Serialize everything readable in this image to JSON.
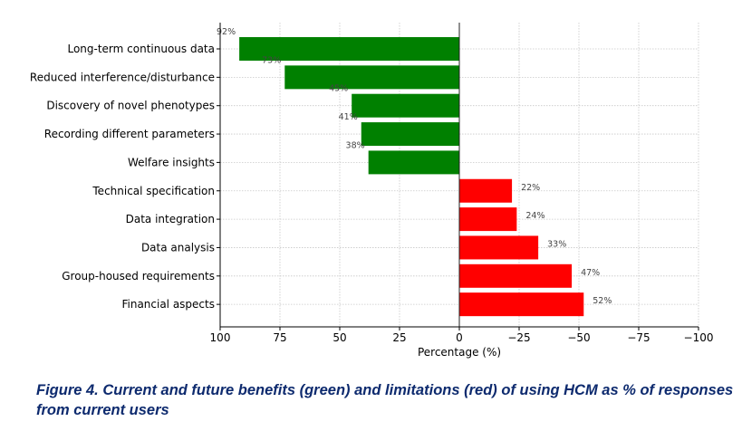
{
  "chart_data": {
    "type": "bar",
    "orientation": "horizontal",
    "categories": [
      "Long-term continuous data",
      "Reduced interference/disturbance",
      "Discovery of novel phenotypes",
      "Recording different parameters",
      "Welfare insights",
      "Technical specification",
      "Data integration",
      "Data analysis",
      "Group-housed requirements",
      "Financial aspects"
    ],
    "values": [
      92,
      73,
      45,
      41,
      38,
      -22,
      -24,
      -33,
      -47,
      -52
    ],
    "data_labels": [
      "92%",
      "73%",
      "45%",
      "41%",
      "38%",
      "22%",
      "24%",
      "33%",
      "47%",
      "52%"
    ],
    "bar_colors": [
      "#008000",
      "#008000",
      "#008000",
      "#008000",
      "#008000",
      "#ff0000",
      "#ff0000",
      "#ff0000",
      "#ff0000",
      "#ff0000"
    ],
    "xlabel": "Percentage (%)",
    "ylabel": "",
    "xlim": [
      100,
      -100
    ],
    "x_inverted": true,
    "xticks": [
      100,
      75,
      50,
      25,
      0,
      -25,
      -50,
      -75,
      -100
    ],
    "xtick_labels": [
      "100",
      "75",
      "50",
      "25",
      "0",
      "−25",
      "−50",
      "−75",
      "−100"
    ],
    "grid": true
  },
  "caption": "Figure 4. Current and future benefits (green) and limitations (red) of using HCM as % of responses from current users"
}
